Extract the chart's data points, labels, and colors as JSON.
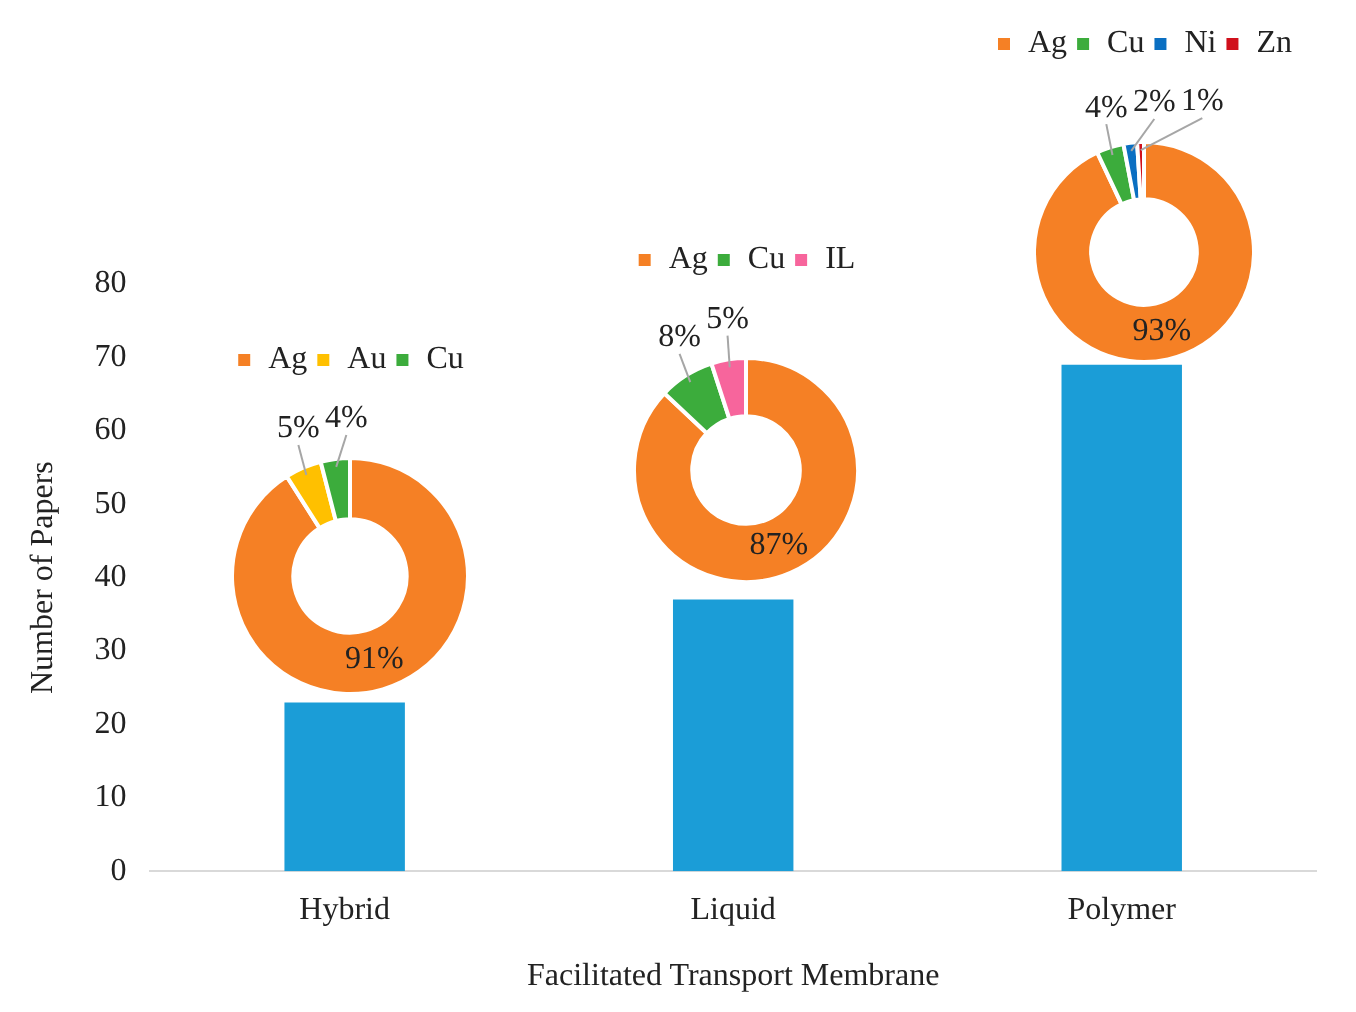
{
  "chart_data": [
    {
      "type": "bar",
      "categories": [
        "Hybrid",
        "Liquid",
        "Polymer"
      ],
      "values": [
        23,
        37,
        69
      ],
      "color": "#1b9dd7",
      "xlabel": "Facilitated Transport Membrane",
      "ylabel": "Number of Papers",
      "ylim": [
        0,
        80
      ],
      "yticks": [
        0,
        10,
        20,
        30,
        40,
        50,
        60,
        70,
        80
      ],
      "grid": false
    },
    {
      "type": "donut",
      "categories": [
        "Ag",
        "Au",
        "Cu"
      ],
      "values": [
        91,
        5,
        4
      ],
      "value_labels": [
        "91%",
        "5%",
        "4%"
      ],
      "colors": [
        "#f58025",
        "#ffc000",
        "#3cac3c"
      ],
      "legend": "top"
    },
    {
      "type": "donut",
      "categories": [
        "Ag",
        "Cu",
        "IL"
      ],
      "values": [
        87,
        8,
        5
      ],
      "value_labels": [
        "87%",
        "8%",
        "5%"
      ],
      "colors": [
        "#f58025",
        "#3cac3c",
        "#f7659c"
      ],
      "legend": "top"
    },
    {
      "type": "donut",
      "categories": [
        "Ag",
        "Cu",
        "Ni",
        "Zn"
      ],
      "values": [
        93,
        4,
        2,
        1
      ],
      "value_labels": [
        "93%",
        "4%",
        "2%",
        "1%"
      ],
      "colors": [
        "#f58025",
        "#3cac3c",
        "#0a6fc2",
        "#d0101c"
      ],
      "legend": "top"
    }
  ]
}
